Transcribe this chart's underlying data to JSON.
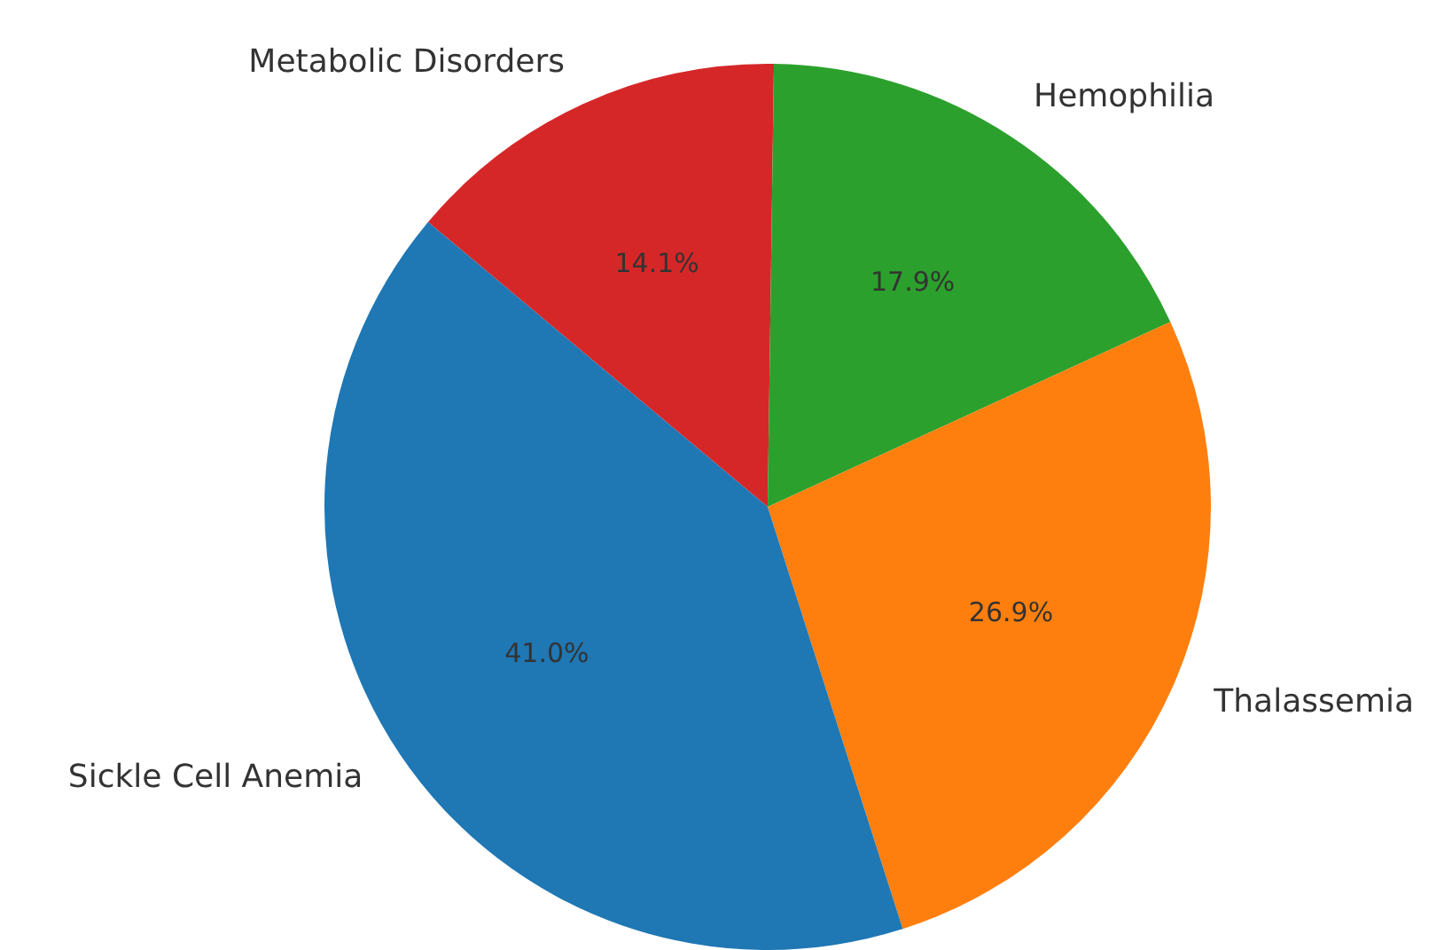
{
  "chart_data": {
    "type": "pie",
    "categories": [
      "Metabolic Disorders",
      "Hemophilia",
      "Thalassemia",
      "Sickle Cell Anemia"
    ],
    "values": [
      14.1,
      17.9,
      26.9,
      41.0
    ],
    "value_labels": [
      "14.1%",
      "17.9%",
      "26.9%",
      "41.0%"
    ],
    "colors": [
      "#d62728",
      "#2ca02c",
      "#ff7f0e",
      "#1f77b4"
    ],
    "legend": false
  }
}
